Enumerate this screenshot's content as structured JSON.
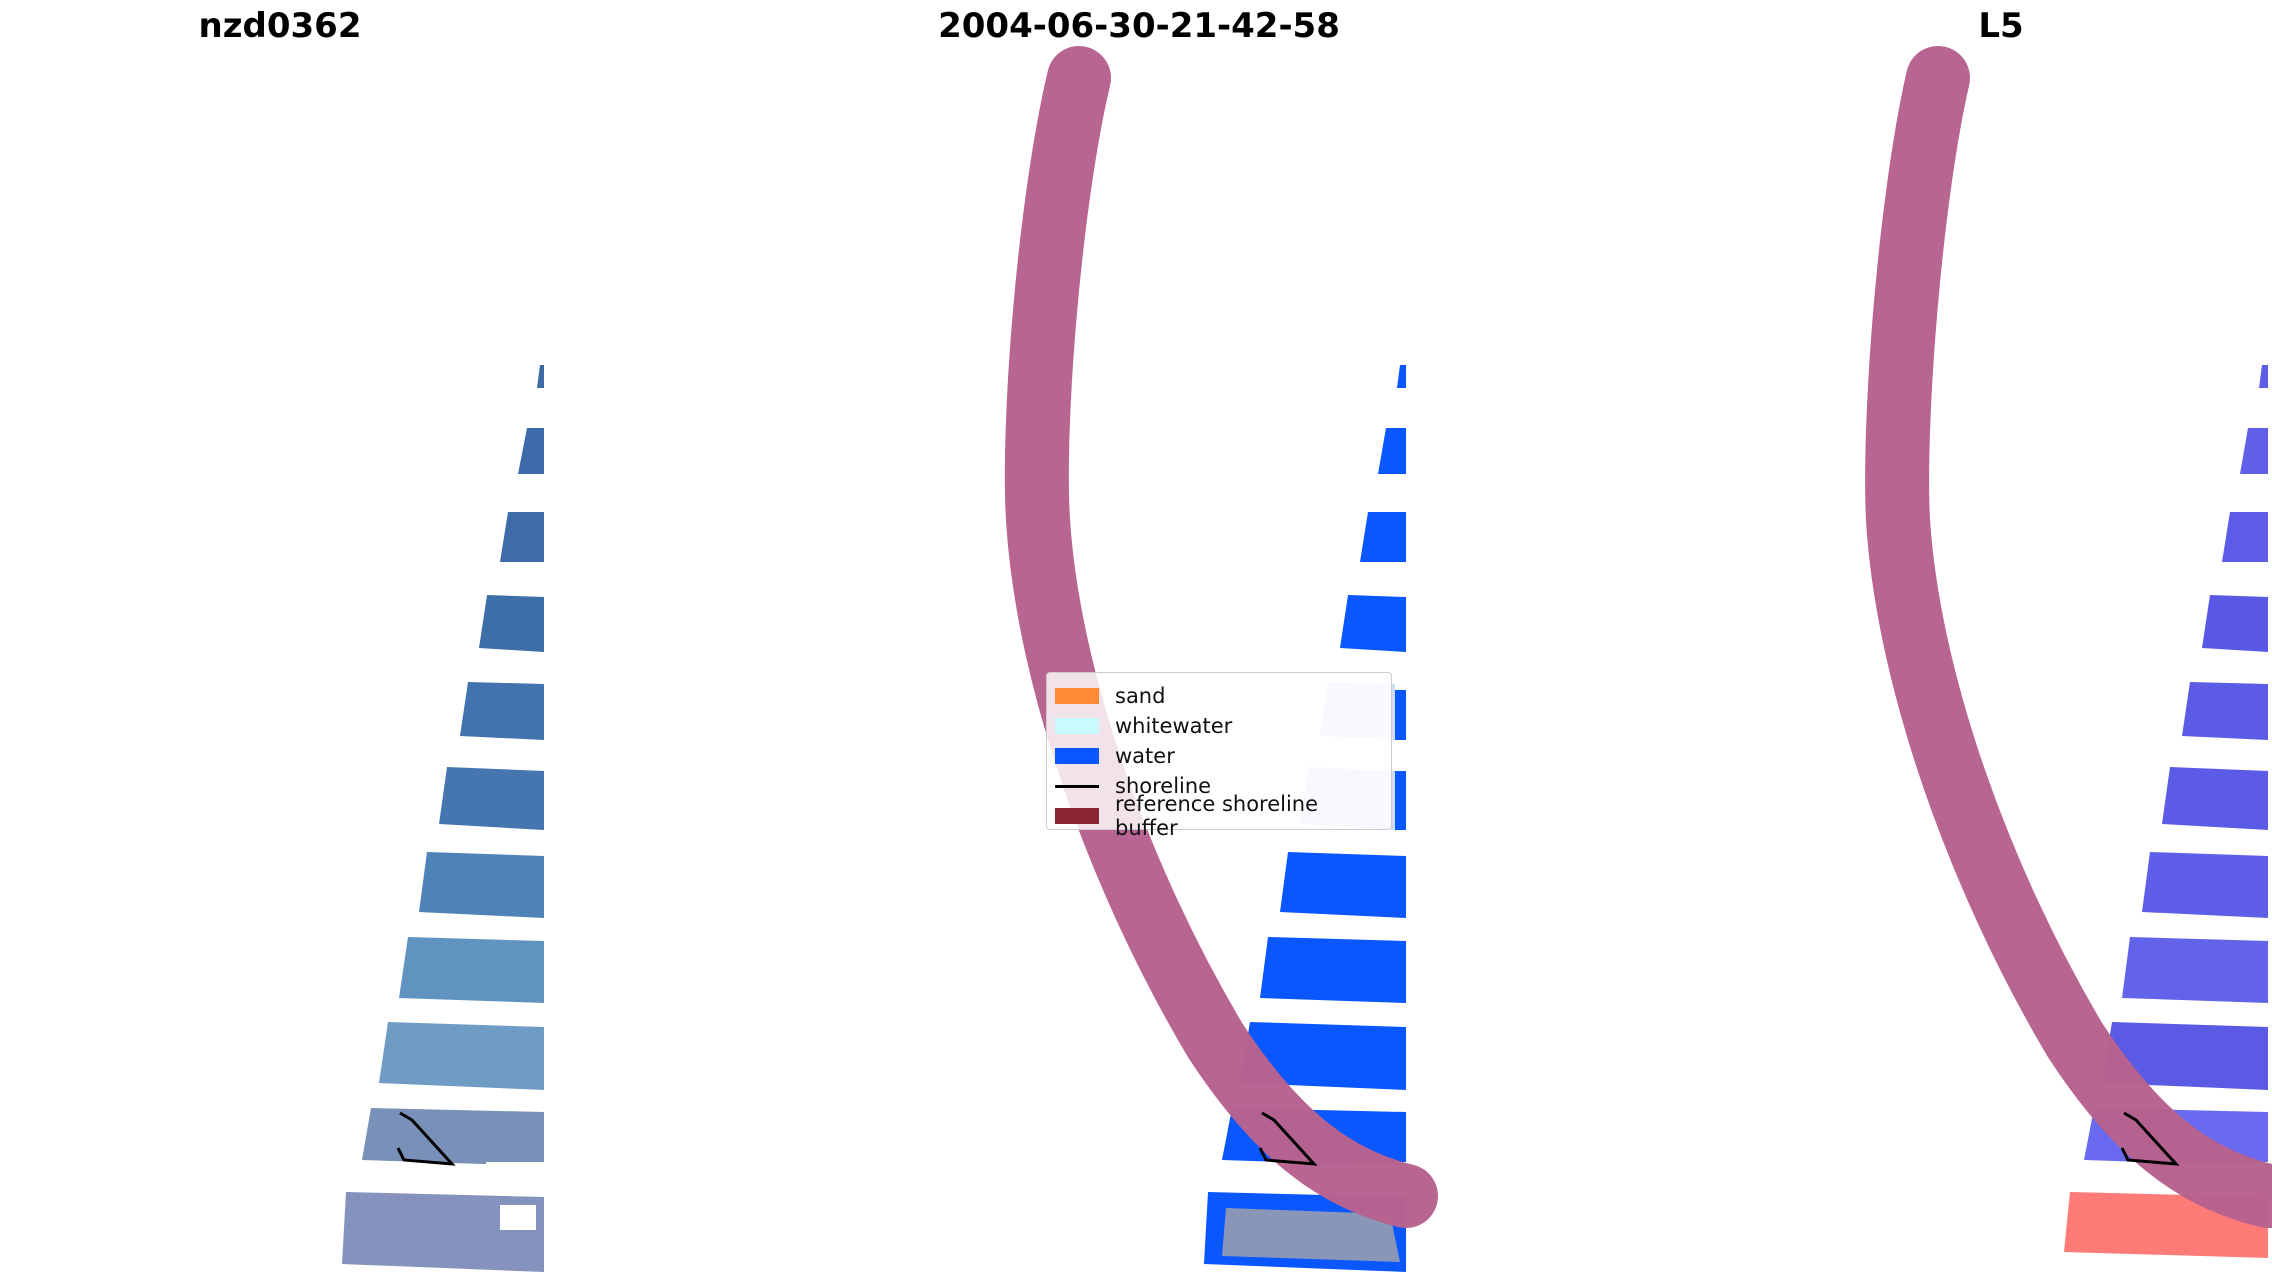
{
  "panels": [
    {
      "title": "nzd0362"
    },
    {
      "title": "2004-06-30-21-42-58"
    },
    {
      "title": "L5"
    }
  ],
  "legend": {
    "items": [
      {
        "label": "sand",
        "color": "#ff8a33",
        "kind": "patch"
      },
      {
        "label": "whitewater",
        "color": "#c8fbff",
        "kind": "patch"
      },
      {
        "label": "water",
        "color": "#0a57ff",
        "kind": "patch"
      },
      {
        "label": "shoreline",
        "color": "#000000",
        "kind": "line"
      },
      {
        "label": "reference shoreline buffer",
        "color": "#8b2430",
        "kind": "patch"
      }
    ]
  },
  "colors": {
    "rgb_strip": "#4a78b4",
    "water_class": "#0a57ff",
    "ndwi_strip": "#5a5ae6",
    "buffer": "#b8628f",
    "shoreline": "#000000"
  }
}
